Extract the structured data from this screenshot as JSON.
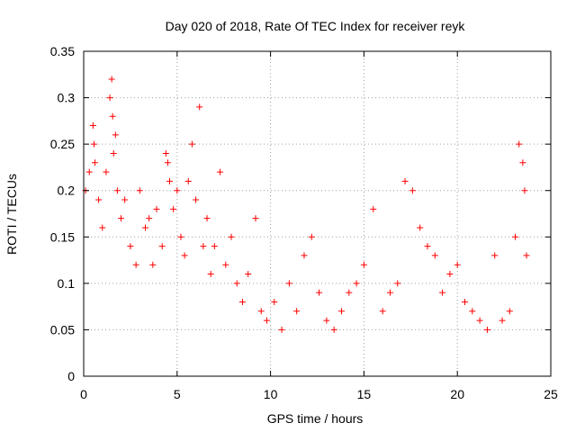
{
  "chart_data": {
    "type": "scatter",
    "title": "Day 020 of 2018, Rate Of TEC Index for receiver reyk",
    "xlabel": "GPS time / hours",
    "ylabel": "ROTI / TECUs",
    "xlim": [
      0,
      25
    ],
    "ylim": [
      0,
      0.35
    ],
    "xticks": [
      0,
      5,
      10,
      15,
      20,
      25
    ],
    "yticks": [
      0,
      0.05,
      0.1,
      0.15,
      0.2,
      0.25,
      0.3,
      0.35
    ],
    "xtick_labels": [
      "0",
      "5",
      "10",
      "15",
      "20",
      "25"
    ],
    "ytick_labels": [
      "0",
      "0.05",
      "0.1",
      "0.15",
      "0.2",
      "0.25",
      "0.3",
      "0.35"
    ],
    "grid": true,
    "marker": "+",
    "color": "#ff0000",
    "series": [
      {
        "name": "ROTI",
        "x": [
          0.1,
          0.3,
          0.5,
          0.55,
          0.6,
          0.8,
          1.0,
          1.2,
          1.4,
          1.5,
          1.55,
          1.6,
          1.7,
          1.8,
          2.0,
          2.2,
          2.5,
          2.8,
          3.0,
          3.3,
          3.5,
          3.7,
          3.9,
          4.2,
          4.4,
          4.5,
          4.6,
          4.8,
          5.0,
          5.2,
          5.4,
          5.6,
          5.8,
          6.0,
          6.2,
          6.4,
          6.6,
          6.8,
          7.0,
          7.3,
          7.6,
          7.9,
          8.2,
          8.5,
          8.8,
          9.2,
          9.5,
          9.8,
          10.2,
          10.6,
          11.0,
          11.4,
          11.8,
          12.2,
          12.6,
          13.0,
          13.4,
          13.8,
          14.2,
          14.6,
          15.0,
          15.5,
          16.0,
          16.4,
          16.8,
          17.2,
          17.6,
          18.0,
          18.4,
          18.8,
          19.2,
          19.6,
          20.0,
          20.4,
          20.8,
          21.2,
          21.6,
          22.0,
          22.4,
          22.8,
          23.1,
          23.3,
          23.5,
          23.6,
          23.7
        ],
        "y": [
          0.2,
          0.22,
          0.27,
          0.25,
          0.23,
          0.19,
          0.16,
          0.22,
          0.3,
          0.32,
          0.28,
          0.24,
          0.26,
          0.2,
          0.17,
          0.19,
          0.14,
          0.12,
          0.2,
          0.16,
          0.17,
          0.12,
          0.18,
          0.14,
          0.24,
          0.23,
          0.21,
          0.18,
          0.2,
          0.15,
          0.13,
          0.21,
          0.25,
          0.19,
          0.29,
          0.14,
          0.17,
          0.11,
          0.14,
          0.22,
          0.12,
          0.15,
          0.1,
          0.08,
          0.11,
          0.17,
          0.07,
          0.06,
          0.08,
          0.05,
          0.1,
          0.07,
          0.13,
          0.15,
          0.09,
          0.06,
          0.05,
          0.07,
          0.09,
          0.1,
          0.12,
          0.18,
          0.07,
          0.09,
          0.1,
          0.21,
          0.2,
          0.16,
          0.14,
          0.13,
          0.09,
          0.11,
          0.12,
          0.08,
          0.07,
          0.06,
          0.05,
          0.13,
          0.06,
          0.07,
          0.15,
          0.25,
          0.23,
          0.2,
          0.13
        ]
      }
    ]
  }
}
